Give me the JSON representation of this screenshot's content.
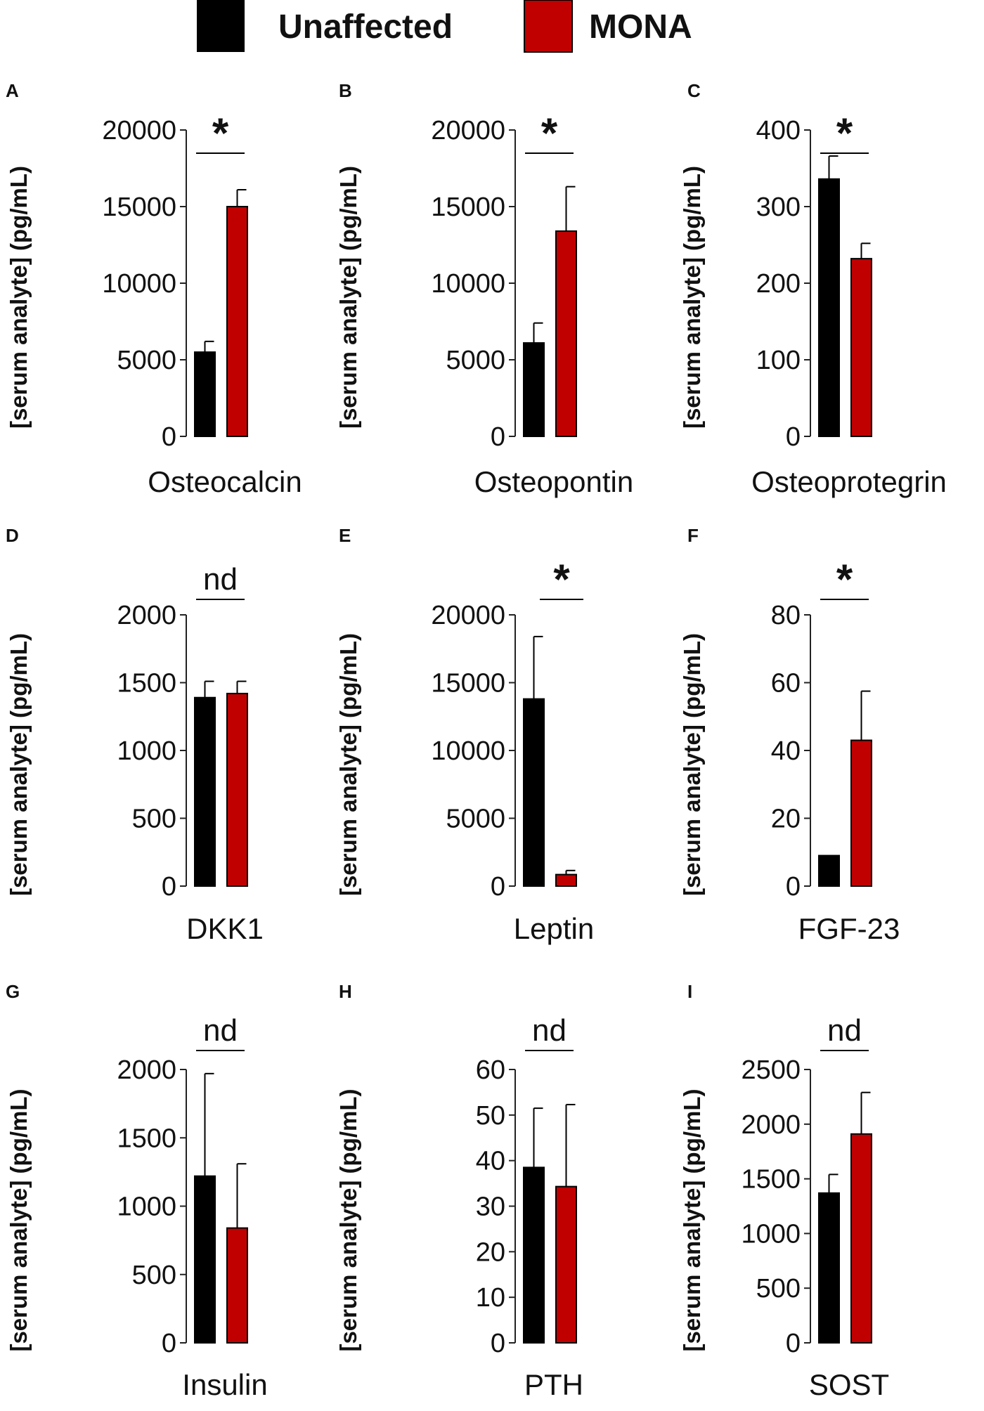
{
  "legend": {
    "items": [
      {
        "label": "Unaffected",
        "color": "#000000"
      },
      {
        "label": "MONA",
        "color": "#c00000"
      }
    ]
  },
  "y_axis_label": "[serum analyte]  (pg/mL)",
  "chart_data": [
    {
      "panel": "A",
      "type": "bar",
      "xlabel": "Osteocalcin",
      "ylabel": "[serum analyte]  (pg/mL)",
      "ylim": [
        0,
        20000
      ],
      "yticks": [
        0,
        5000,
        10000,
        15000,
        20000
      ],
      "series": [
        {
          "name": "Unaffected",
          "values": [
            5500
          ],
          "error": [
            700
          ]
        },
        {
          "name": "MONA",
          "values": [
            15000
          ],
          "error": [
            1100
          ]
        }
      ],
      "significance": "*",
      "sig_over": "both"
    },
    {
      "panel": "B",
      "type": "bar",
      "xlabel": "Osteopontin",
      "ylabel": "[serum analyte]  (pg/mL)",
      "ylim": [
        0,
        20000
      ],
      "yticks": [
        0,
        5000,
        10000,
        15000,
        20000
      ],
      "series": [
        {
          "name": "Unaffected",
          "values": [
            6100
          ],
          "error": [
            1300
          ]
        },
        {
          "name": "MONA",
          "values": [
            13400
          ],
          "error": [
            2900
          ]
        }
      ],
      "significance": "*",
      "sig_over": "both"
    },
    {
      "panel": "C",
      "type": "bar",
      "xlabel": "Osteoprotegrin",
      "ylabel": "[serum analyte]  (pg/mL)",
      "ylim": [
        0,
        400
      ],
      "yticks": [
        0,
        100,
        200,
        300,
        400
      ],
      "series": [
        {
          "name": "Unaffected",
          "values": [
            336
          ],
          "error": [
            30
          ]
        },
        {
          "name": "MONA",
          "values": [
            232
          ],
          "error": [
            20
          ]
        }
      ],
      "significance": "*",
      "sig_over": "both"
    },
    {
      "panel": "D",
      "type": "bar",
      "xlabel": "DKK1",
      "ylabel": "[serum analyte]  (pg/mL)",
      "ylim": [
        0,
        2000
      ],
      "yticks": [
        0,
        500,
        1000,
        1500,
        2000
      ],
      "series": [
        {
          "name": "Unaffected",
          "values": [
            1390
          ],
          "error": [
            120
          ]
        },
        {
          "name": "MONA",
          "values": [
            1420
          ],
          "error": [
            90
          ]
        }
      ],
      "significance": "nd",
      "sig_over": "both"
    },
    {
      "panel": "E",
      "type": "bar",
      "xlabel": "Leptin",
      "ylabel": "[serum analyte]  (pg/mL)",
      "ylim": [
        0,
        20000
      ],
      "yticks": [
        0,
        5000,
        10000,
        15000,
        20000
      ],
      "series": [
        {
          "name": "Unaffected",
          "values": [
            13800
          ],
          "error": [
            4600
          ]
        },
        {
          "name": "MONA",
          "values": [
            850
          ],
          "error": [
            300
          ]
        }
      ],
      "significance": "*",
      "sig_over": "mona"
    },
    {
      "panel": "F",
      "type": "bar",
      "xlabel": "FGF-23",
      "ylabel": "[serum analyte]  (pg/mL)",
      "ylim": [
        0,
        80
      ],
      "yticks": [
        0,
        20,
        40,
        60,
        80
      ],
      "series": [
        {
          "name": "Unaffected",
          "values": [
            9
          ],
          "error": [
            0
          ]
        },
        {
          "name": "MONA",
          "values": [
            43
          ],
          "error": [
            14.5
          ]
        }
      ],
      "significance": "*",
      "sig_over": "both"
    },
    {
      "panel": "G",
      "type": "bar",
      "xlabel": "Insulin",
      "ylabel": "[serum analyte]  (pg/mL)",
      "ylim": [
        0,
        2000
      ],
      "yticks": [
        0,
        500,
        1000,
        1500,
        2000
      ],
      "series": [
        {
          "name": "Unaffected",
          "values": [
            1220
          ],
          "error": [
            750
          ]
        },
        {
          "name": "MONA",
          "values": [
            840
          ],
          "error": [
            470
          ]
        }
      ],
      "significance": "nd",
      "sig_over": "both"
    },
    {
      "panel": "H",
      "type": "bar",
      "xlabel": "PTH",
      "ylabel": "[serum analyte]  (pg/mL)",
      "ylim": [
        0,
        60
      ],
      "yticks": [
        0,
        10,
        20,
        30,
        40,
        50,
        60
      ],
      "series": [
        {
          "name": "Unaffected",
          "values": [
            38.5
          ],
          "error": [
            13
          ]
        },
        {
          "name": "MONA",
          "values": [
            34.3
          ],
          "error": [
            18
          ]
        }
      ],
      "significance": "nd",
      "sig_over": "both"
    },
    {
      "panel": "I",
      "type": "bar",
      "xlabel": "SOST",
      "ylabel": "[serum analyte]  (pg/mL)",
      "ylim": [
        0,
        2500
      ],
      "yticks": [
        0,
        500,
        1000,
        1500,
        2000,
        2500
      ],
      "series": [
        {
          "name": "Unaffected",
          "values": [
            1370
          ],
          "error": [
            170
          ]
        },
        {
          "name": "MONA",
          "values": [
            1910
          ],
          "error": [
            380
          ]
        }
      ],
      "significance": "nd",
      "sig_over": "both"
    }
  ]
}
